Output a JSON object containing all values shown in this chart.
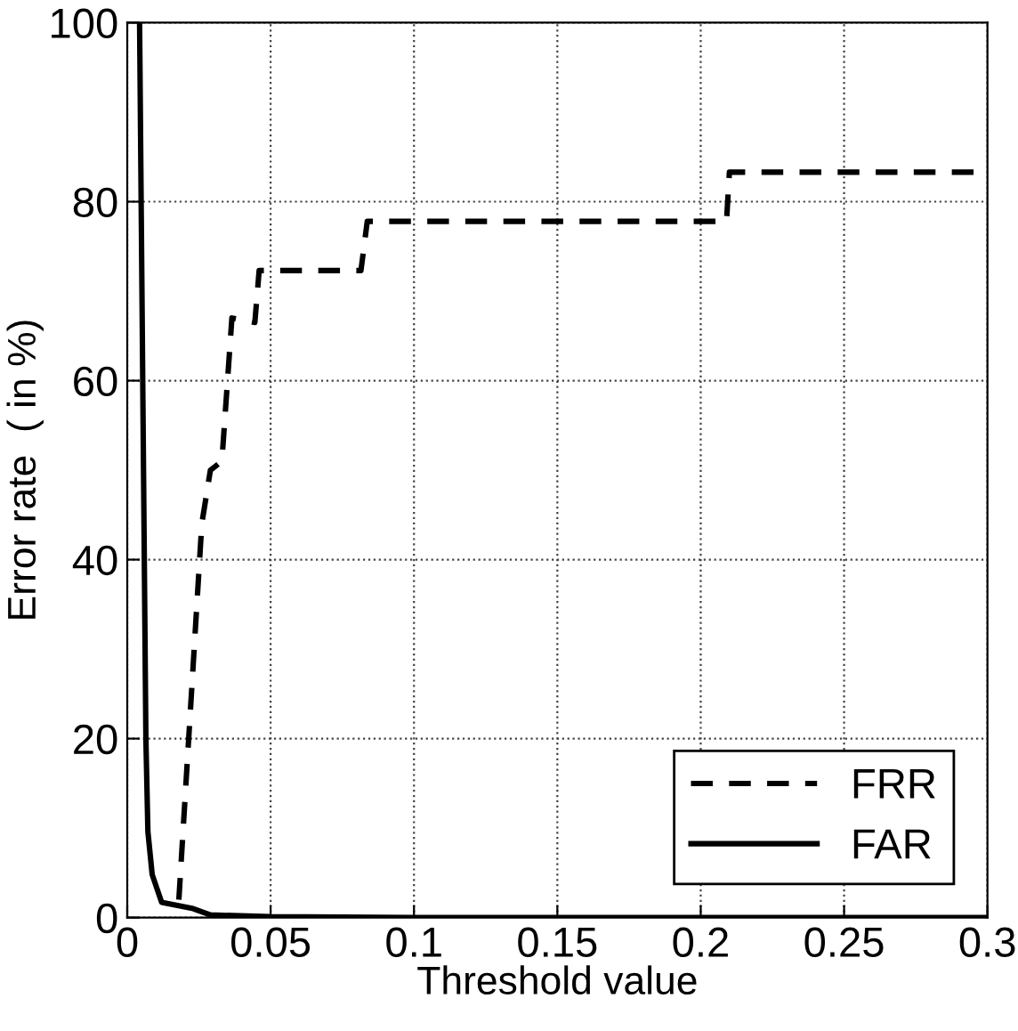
{
  "chart_data": {
    "type": "line",
    "xlabel": "Threshold value",
    "ylabel": "Error rate  ( in %)",
    "xlim": [
      0,
      0.3
    ],
    "ylim": [
      0,
      100
    ],
    "xticks": [
      0,
      0.05,
      0.1,
      0.15,
      0.2,
      0.25,
      0.3
    ],
    "yticks": [
      0,
      20,
      40,
      60,
      80,
      100
    ],
    "grid": true,
    "legend": "bottom right",
    "series": [
      {
        "name": "FRR",
        "color": "#000000",
        "line_style": "dashed",
        "x": [
          0.018,
          0.026,
          0.029,
          0.033,
          0.0365,
          0.0445,
          0.046,
          0.0815,
          0.0837,
          0.209,
          0.21,
          0.3
        ],
        "values": [
          2,
          44,
          50,
          51,
          67,
          66.5,
          72.3,
          72.3,
          77.8,
          77.8,
          83.3,
          83.3
        ]
      },
      {
        "name": "FAR",
        "color": "#000000",
        "line_style": "solid",
        "x": [
          0.0043,
          0.0065,
          0.0072,
          0.0087,
          0.012,
          0.023,
          0.029,
          0.05,
          0.1,
          0.3
        ],
        "values": [
          100,
          20,
          9.6,
          4.8,
          1.7,
          1,
          0.3,
          0.1,
          0,
          0
        ]
      }
    ]
  }
}
